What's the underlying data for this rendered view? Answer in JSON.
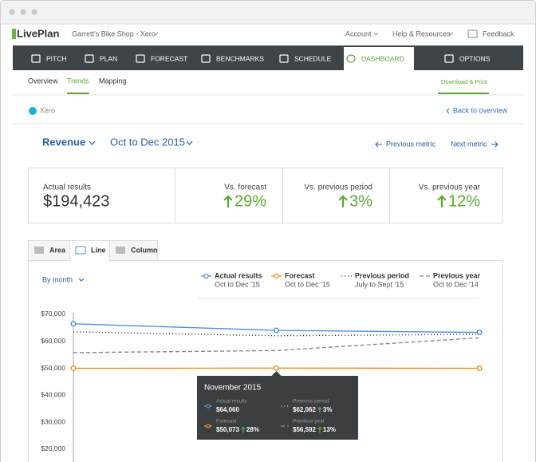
{
  "header": {
    "logo": "LivePlan",
    "business": "Garrett's Bike Shop - Xero",
    "links": [
      "Account",
      "Help & Resources"
    ],
    "feedback": "Feedback"
  },
  "nav": {
    "items": [
      "PITCH",
      "PLAN",
      "FORECAST",
      "BENCHMARKS",
      "SCHEDULE",
      "DASHBOARD",
      "OPTIONS"
    ],
    "active": 5
  },
  "subnav": {
    "items": [
      "Overview",
      "Trends",
      "Mapping"
    ],
    "active": 1,
    "action": "Download & Print"
  },
  "source": "Xero",
  "back": "Back to overview",
  "metric": "Revenue",
  "period": "Oct to Dec 2015",
  "previous": "Previous metric",
  "next": "Next metric",
  "stats": [
    {
      "label": "Actual results",
      "value": "$194,423"
    },
    {
      "label": "Vs. forecast",
      "value": "29%",
      "trend": "up"
    },
    {
      "label": "Vs. previous period",
      "value": "3%",
      "trend": "up"
    },
    {
      "label": "Vs. previous year",
      "value": "12%",
      "trend": "up"
    }
  ],
  "chart_tabs": {
    "items": [
      "Area",
      "Line",
      "Column"
    ],
    "active": 1
  },
  "group_by": "By month",
  "chart_data": {
    "type": "line",
    "categories": [
      null,
      null,
      null
    ],
    "ylim": [
      16000,
      71000
    ],
    "yticks": [
      {
        "value": 70000,
        "label": "$70,000"
      },
      {
        "value": 60000,
        "label": "$60,000"
      },
      {
        "value": 50000,
        "label": "$50,000"
      },
      {
        "value": 40000,
        "label": "$40,000"
      },
      {
        "value": 30000,
        "label": "$30,000"
      },
      {
        "value": 20000,
        "label": "$20,000"
      }
    ],
    "grid": false,
    "series": [
      {
        "name": "Actual results",
        "period": "Oct to Dec '15",
        "color": "#4a90e2",
        "dash": "solid",
        "markers": true,
        "values": [
          66500,
          64060,
          63300
        ]
      },
      {
        "name": "Forecast",
        "period": "Oct to Dec '15",
        "color": "#f0901e",
        "dash": "solid",
        "markers": true,
        "values": [
          50000,
          50073,
          50000
        ]
      },
      {
        "name": "Previous period",
        "period": "July to Sept '15",
        "color": "#444444",
        "dash": "dotted",
        "markers": false,
        "values": [
          63500,
          62062,
          62600
        ]
      },
      {
        "name": "Previous year",
        "period": "Oct to Dec '14",
        "color": "#8a8a8a",
        "dash": "dashed",
        "markers": false,
        "values": [
          55800,
          56592,
          61300
        ]
      }
    ],
    "tooltip": {
      "title": "November 2015",
      "items": [
        {
          "label": "Actual results",
          "value": "$64,060"
        },
        {
          "label": "Forecast",
          "value": "$50,073",
          "change": "28%"
        },
        {
          "label": "Previous period",
          "value": "$62,062",
          "change": "3%"
        },
        {
          "label": "Previous year",
          "value": "$56,592",
          "change": "13%"
        }
      ]
    }
  }
}
